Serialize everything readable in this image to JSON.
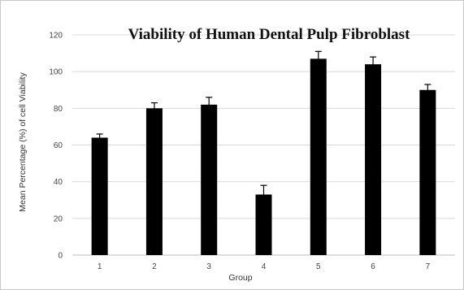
{
  "chart_data": {
    "type": "bar",
    "title": "Viability of Human Dental Pulp Fibroblast",
    "xlabel": "Group",
    "ylabel": "Mean Percentage (%) of cell Viability",
    "categories": [
      "1",
      "2",
      "3",
      "4",
      "5",
      "6",
      "7"
    ],
    "values": [
      64,
      80,
      82,
      33,
      107,
      104,
      90
    ],
    "errors": [
      2,
      3,
      4,
      5,
      4,
      4,
      3
    ],
    "ylim": [
      0,
      120
    ],
    "yticks": [
      "0",
      "20",
      "40",
      "60",
      "80",
      "100",
      "120"
    ],
    "grid": true,
    "legend": "none",
    "colors": {
      "bar": "#000000",
      "grid": "#d9d9d9",
      "axis": "#bfbfbf"
    }
  }
}
